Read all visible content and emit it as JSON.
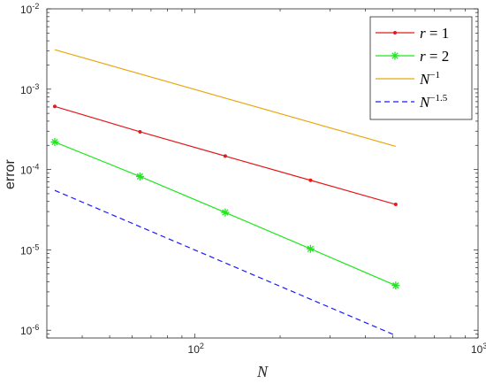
{
  "chart_data": {
    "type": "line",
    "title": "",
    "xlabel": "N",
    "ylabel": "error",
    "xscale": "log",
    "yscale": "log",
    "xlim": [
      30,
      1000
    ],
    "ylim": [
      8e-07,
      0.01
    ],
    "grid": false,
    "legend_position": "top-right",
    "x_ticks": [
      {
        "value": 100,
        "base": "10",
        "exp": "2"
      },
      {
        "value": 1000,
        "base": "10",
        "exp": "3"
      }
    ],
    "y_ticks": [
      {
        "value": 0.01,
        "base": "10",
        "exp": "-2"
      },
      {
        "value": 0.001,
        "base": "10",
        "exp": "-3"
      },
      {
        "value": 0.0001,
        "base": "10",
        "exp": "-4"
      },
      {
        "value": 1e-05,
        "base": "10",
        "exp": "-5"
      },
      {
        "value": 1e-06,
        "base": "10",
        "exp": "-6"
      }
    ],
    "series": [
      {
        "name": "r = 1",
        "legend_var": "r",
        "legend_rest": " = 1",
        "color": "#e31a1c",
        "marker": "dot",
        "dash": "",
        "x": [
          32,
          64,
          128,
          256,
          512
        ],
        "y": [
          0.00061,
          0.000295,
          0.000147,
          7.35e-05,
          3.68e-05
        ]
      },
      {
        "name": "r = 2",
        "legend_var": "r",
        "legend_rest": " = 2",
        "color": "#1fe61f",
        "marker": "star",
        "dash": "",
        "x": [
          32,
          64,
          128,
          256,
          512
        ],
        "y": [
          0.00022,
          8.2e-05,
          2.92e-05,
          1.03e-05,
          3.6e-06
        ]
      },
      {
        "name": "N^-1",
        "legend_var": "N",
        "legend_sup": "−1",
        "color": "#e8a812",
        "marker": "none",
        "dash": "",
        "x": [
          32,
          512
        ],
        "y": [
          0.0031,
          0.000194
        ]
      },
      {
        "name": "N^-1.5",
        "legend_var": "N",
        "legend_sup": "−1.5",
        "color": "#1a1aff",
        "marker": "none",
        "dash": "6,4",
        "x": [
          32,
          512
        ],
        "y": [
          5.5e-05,
          8.6e-07
        ]
      }
    ]
  }
}
